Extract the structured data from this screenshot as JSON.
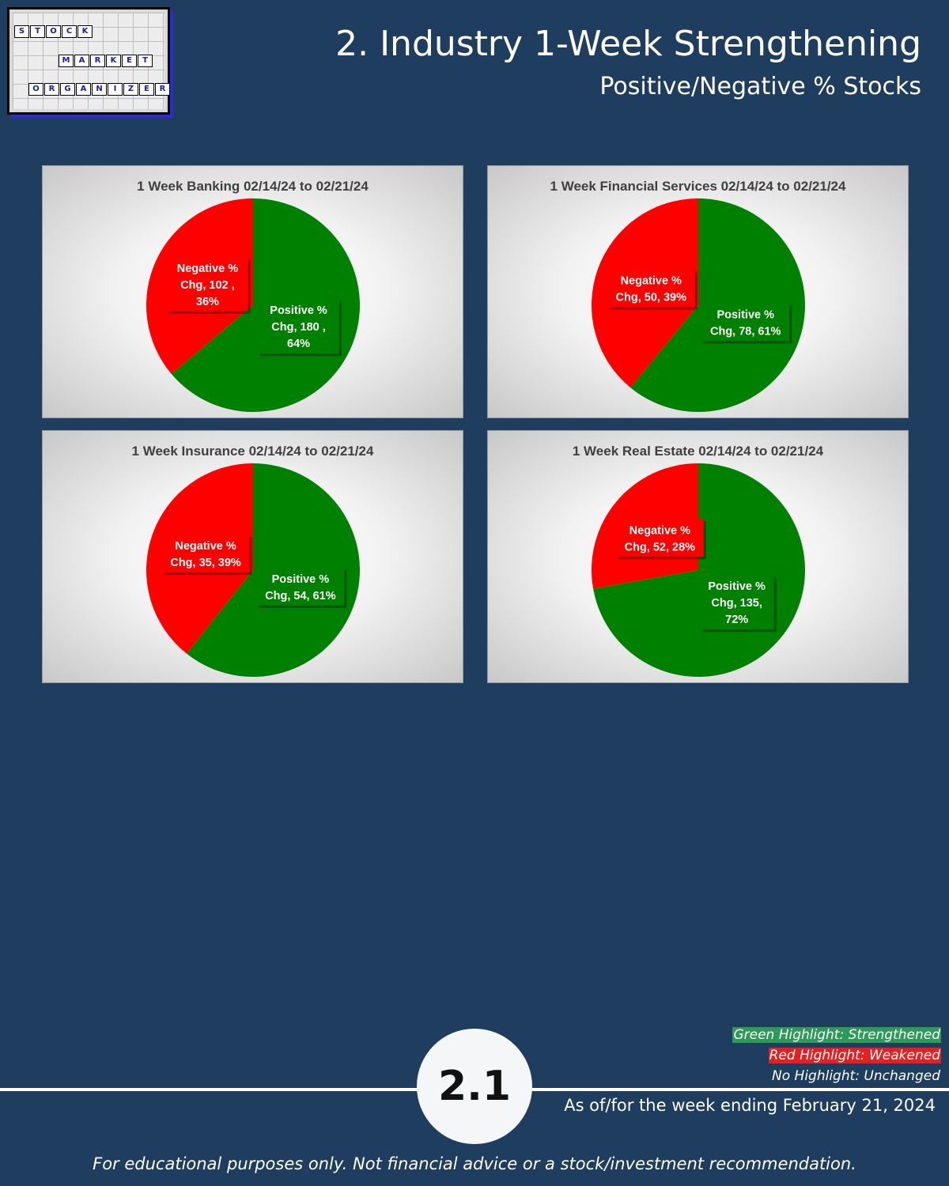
{
  "colors": {
    "background": "#1e3d5f",
    "positive": "#008000",
    "negative": "#ff0000",
    "highlight_green": "#2e9a57",
    "highlight_red": "#e62020"
  },
  "logo": {
    "rows": [
      [
        "S",
        "T",
        "O",
        "C",
        "K"
      ],
      [
        "M",
        "A",
        "R",
        "K",
        "E",
        "T"
      ],
      [
        "O",
        "R",
        "G",
        "A",
        "N",
        "I",
        "Z",
        "E",
        "R"
      ]
    ]
  },
  "header": {
    "title": "2. Industry 1-Week Strengthening",
    "subtitle": "Positive/Negative % Stocks"
  },
  "chart_data": [
    {
      "type": "pie",
      "title": "1 Week Banking 02/14/24 to 02/21/24",
      "slices": [
        {
          "name": "Positive % Chg",
          "value": 180,
          "percent": 64,
          "color": "#008000",
          "label_lines": [
            "Positive %",
            "Chg,  180 ,",
            "64%"
          ]
        },
        {
          "name": "Negative % Chg",
          "value": 102,
          "percent": 36,
          "color": "#ff0000",
          "label_lines": [
            "Negative %",
            "Chg,  102 ,",
            "36%"
          ]
        }
      ]
    },
    {
      "type": "pie",
      "title": "1 Week Financial Services 02/14/24 to 02/21/24",
      "slices": [
        {
          "name": "Positive % Chg",
          "value": 78,
          "percent": 61,
          "color": "#008000",
          "label_lines": [
            "Positive %",
            "Chg, 78, 61%"
          ]
        },
        {
          "name": "Negative % Chg",
          "value": 50,
          "percent": 39,
          "color": "#ff0000",
          "label_lines": [
            "Negative %",
            "Chg, 50, 39%"
          ]
        }
      ]
    },
    {
      "type": "pie",
      "title": "1 Week Insurance 02/14/24 to 02/21/24",
      "slices": [
        {
          "name": "Positive % Chg",
          "value": 54,
          "percent": 61,
          "color": "#008000",
          "label_lines": [
            "Positive %",
            "Chg, 54, 61%"
          ]
        },
        {
          "name": "Negative % Chg",
          "value": 35,
          "percent": 39,
          "color": "#ff0000",
          "label_lines": [
            "Negative %",
            "Chg, 35, 39%"
          ]
        }
      ]
    },
    {
      "type": "pie",
      "title": "1 Week Real Estate 02/14/24 to 02/21/24",
      "slices": [
        {
          "name": "Positive % Chg",
          "value": 135,
          "percent": 72,
          "color": "#008000",
          "label_lines": [
            "Positive %",
            "Chg, 135,",
            "72%"
          ]
        },
        {
          "name": "Negative % Chg",
          "value": 52,
          "percent": 28,
          "color": "#ff0000",
          "label_lines": [
            "Negative %",
            "Chg, 52, 28%"
          ]
        }
      ]
    }
  ],
  "footer": {
    "page_number": "2.1",
    "legend": {
      "green": "Green Highlight: Strengthened",
      "red": "Red Highlight: Weakened",
      "none": "No Highlight: Unchanged"
    },
    "as_of": "As of/for the week ending February 21, 2024",
    "disclaimer": "For educational purposes only. Not financial advice or a stock/investment recommendation."
  }
}
